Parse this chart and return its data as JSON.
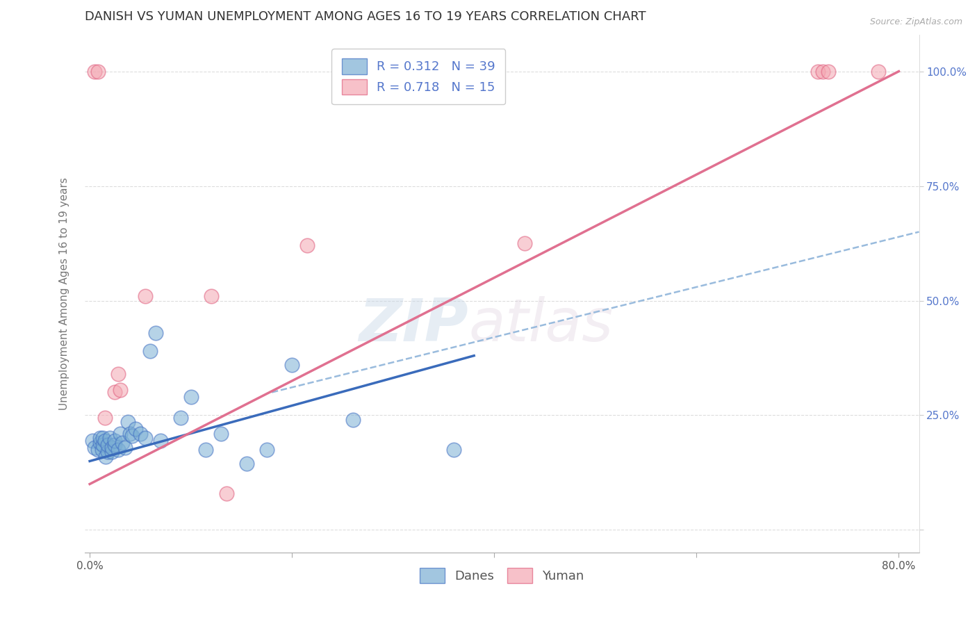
{
  "title": "DANISH VS YUMAN UNEMPLOYMENT AMONG AGES 16 TO 19 YEARS CORRELATION CHART",
  "source": "Source: ZipAtlas.com",
  "ylabel": "Unemployment Among Ages 16 to 19 years",
  "xlim": [
    -0.005,
    0.82
  ],
  "ylim": [
    -0.05,
    1.08
  ],
  "danes_R": 0.312,
  "danes_N": 39,
  "yuman_R": 0.718,
  "yuman_N": 15,
  "danes_color": "#7BAFD4",
  "yuman_color": "#F4A7B2",
  "danes_edge_color": "#4472C4",
  "yuman_edge_color": "#E06080",
  "danes_line_color": "#3A6BBB",
  "yuman_line_color": "#E07090",
  "extend_line_color": "#99BBDD",
  "background_color": "#FFFFFF",
  "grid_color": "#DDDDDD",
  "title_color": "#333333",
  "right_axis_color": "#5577CC",
  "danes_scatter_x": [
    0.003,
    0.005,
    0.008,
    0.01,
    0.01,
    0.012,
    0.013,
    0.013,
    0.015,
    0.016,
    0.018,
    0.018,
    0.02,
    0.022,
    0.022,
    0.025,
    0.025,
    0.028,
    0.03,
    0.032,
    0.035,
    0.038,
    0.04,
    0.042,
    0.045,
    0.05,
    0.055,
    0.06,
    0.065,
    0.07,
    0.09,
    0.1,
    0.115,
    0.13,
    0.155,
    0.175,
    0.2,
    0.26,
    0.36
  ],
  "danes_scatter_y": [
    0.195,
    0.18,
    0.175,
    0.19,
    0.2,
    0.175,
    0.185,
    0.2,
    0.195,
    0.16,
    0.17,
    0.185,
    0.2,
    0.17,
    0.18,
    0.185,
    0.195,
    0.175,
    0.21,
    0.19,
    0.18,
    0.235,
    0.21,
    0.205,
    0.22,
    0.21,
    0.2,
    0.39,
    0.43,
    0.195,
    0.245,
    0.29,
    0.175,
    0.21,
    0.145,
    0.175,
    0.36,
    0.24,
    0.175
  ],
  "yuman_scatter_x": [
    0.005,
    0.008,
    0.015,
    0.025,
    0.028,
    0.03,
    0.055,
    0.12,
    0.135,
    0.215,
    0.43,
    0.72,
    0.725,
    0.73,
    0.78
  ],
  "yuman_scatter_y": [
    1.0,
    1.0,
    0.245,
    0.3,
    0.34,
    0.305,
    0.51,
    0.51,
    0.08,
    0.62,
    0.625,
    1.0,
    1.0,
    1.0,
    1.0
  ],
  "danes_trendline_x": [
    0.0,
    0.38
  ],
  "danes_trendline_y": [
    0.15,
    0.38
  ],
  "extend_trendline_x": [
    0.18,
    0.82
  ],
  "extend_trendline_y": [
    0.3,
    0.65
  ],
  "yuman_trendline_x": [
    0.0,
    0.8
  ],
  "yuman_trendline_y": [
    0.1,
    1.0
  ],
  "watermark_zip": "ZIP",
  "watermark_atlas": "atlas",
  "title_fontsize": 13,
  "axis_fontsize": 11,
  "legend_fontsize": 13
}
